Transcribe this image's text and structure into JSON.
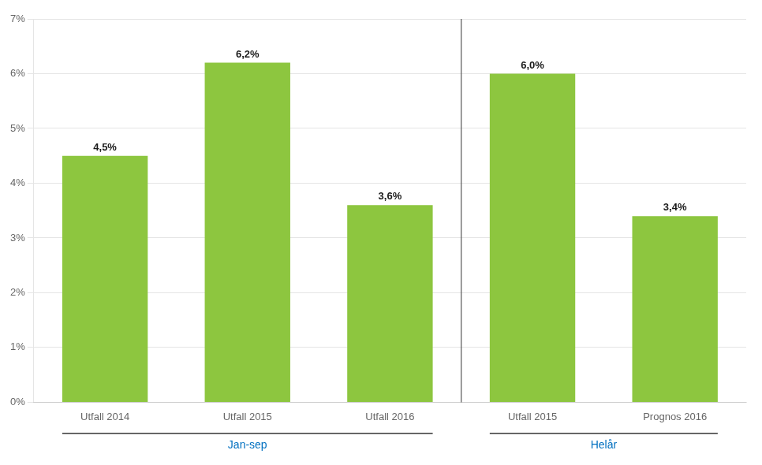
{
  "chart_data": {
    "type": "bar",
    "categories": [
      "Utfall 2014",
      "Utfall 2015",
      "Utfall 2016",
      "Utfall 2015",
      "Prognos 2016"
    ],
    "values": [
      4.5,
      6.2,
      3.6,
      6.0,
      3.4
    ],
    "value_labels": [
      "4,5%",
      "6,2%",
      "3,6%",
      "6,0%",
      "3,4%"
    ],
    "data_labels": true,
    "color": "#8DC63F",
    "ylim": [
      0,
      7
    ],
    "yticks": [
      {
        "value": 0,
        "label": "0%"
      },
      {
        "value": 1,
        "label": "1%"
      },
      {
        "value": 2,
        "label": "2%"
      },
      {
        "value": 3,
        "label": "3%"
      },
      {
        "value": 4,
        "label": "4%"
      },
      {
        "value": 5,
        "label": "5%"
      },
      {
        "value": 6,
        "label": "6%"
      },
      {
        "value": 7,
        "label": "7%"
      }
    ],
    "grid": true,
    "groups": [
      {
        "label": "Jan-sep",
        "categories": [
          "Utfall 2014",
          "Utfall 2015",
          "Utfall 2016"
        ],
        "color": "#0070C0"
      },
      {
        "label": "Helår",
        "categories": [
          "Utfall 2015",
          "Prognos 2016"
        ],
        "color": "#0070C0"
      }
    ]
  }
}
